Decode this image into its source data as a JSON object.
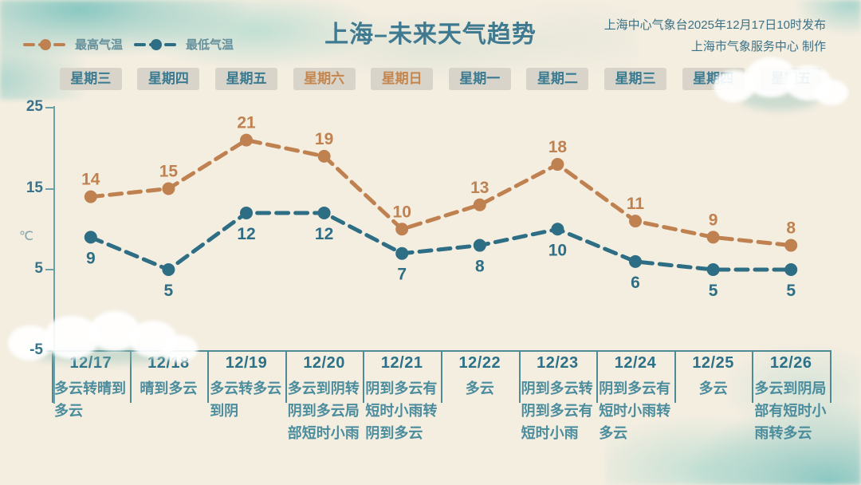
{
  "title": "上海–未来天气趋势",
  "source": {
    "line1": "上海中心气象台2025年12月17日10时发布",
    "line2": "上海市气象服务中心 制作"
  },
  "legend": {
    "high": "最高气温",
    "low": "最低气温"
  },
  "y_axis": {
    "unit": "℃",
    "ticks": [
      25,
      15,
      5,
      -5
    ]
  },
  "days": [
    {
      "weekday": "星期三",
      "weekend": false,
      "date": "12/17",
      "desc": "多云转晴到多云",
      "high": 14,
      "low": 9
    },
    {
      "weekday": "星期四",
      "weekend": false,
      "date": "12/18",
      "desc": "晴到多云",
      "high": 15,
      "low": 5
    },
    {
      "weekday": "星期五",
      "weekend": false,
      "date": "12/19",
      "desc": "多云转多云到阴",
      "high": 21,
      "low": 12
    },
    {
      "weekday": "星期六",
      "weekend": true,
      "date": "12/20",
      "desc": "多云到阴转阴到多云局部短时小雨",
      "high": 19,
      "low": 12
    },
    {
      "weekday": "星期日",
      "weekend": true,
      "date": "12/21",
      "desc": "阴到多云有短时小雨转阴到多云",
      "high": 10,
      "low": 7
    },
    {
      "weekday": "星期一",
      "weekend": false,
      "date": "12/22",
      "desc": "多云",
      "high": 13,
      "low": 8
    },
    {
      "weekday": "星期二",
      "weekend": false,
      "date": "12/23",
      "desc": "阴到多云转阴到多云有短时小雨",
      "high": 18,
      "low": 10
    },
    {
      "weekday": "星期三",
      "weekend": false,
      "date": "12/24",
      "desc": "阴到多云有短时小雨转多云",
      "high": 11,
      "low": 6
    },
    {
      "weekday": "星期四",
      "weekend": false,
      "date": "12/25",
      "desc": "多云",
      "high": 9,
      "low": 5
    },
    {
      "weekday": "星期五",
      "weekend": false,
      "date": "12/26",
      "desc": "多云到阴局部有短时小雨转多云",
      "high": 8,
      "low": 5
    }
  ],
  "chart_data": {
    "type": "line",
    "title": "上海–未来天气趋势",
    "categories": [
      "12/17",
      "12/18",
      "12/19",
      "12/20",
      "12/21",
      "12/22",
      "12/23",
      "12/24",
      "12/25",
      "12/26"
    ],
    "series": [
      {
        "name": "最高气温",
        "color": "#c08150",
        "values": [
          14,
          15,
          21,
          19,
          10,
          13,
          18,
          11,
          9,
          8
        ]
      },
      {
        "name": "最低气温",
        "color": "#2e6e85",
        "values": [
          9,
          5,
          12,
          12,
          7,
          8,
          10,
          6,
          5,
          5
        ]
      }
    ],
    "xlabel": "",
    "ylabel": "℃",
    "ylim": [
      -5,
      25
    ],
    "yticks": [
      25,
      15,
      5,
      -5
    ],
    "grid": false,
    "line_style": "dashed",
    "legend_position": "top-left"
  },
  "colors": {
    "bg": "#f4eee1",
    "title": "#3f7a90",
    "source": "#3a7187",
    "legendText": "#64909b",
    "high": "#c08150",
    "low": "#2e6e85",
    "weekdayTeal": "#3a7b92",
    "weekdayOrange": "#c5864e",
    "buttonBg": "#d8d4c9",
    "axis": "#6ba0a8",
    "tick": "#3a7389",
    "unit": "#87a4aa",
    "tableLine": "#4f8b96",
    "date": "#2c7187",
    "desc": "#4b8c9d"
  }
}
